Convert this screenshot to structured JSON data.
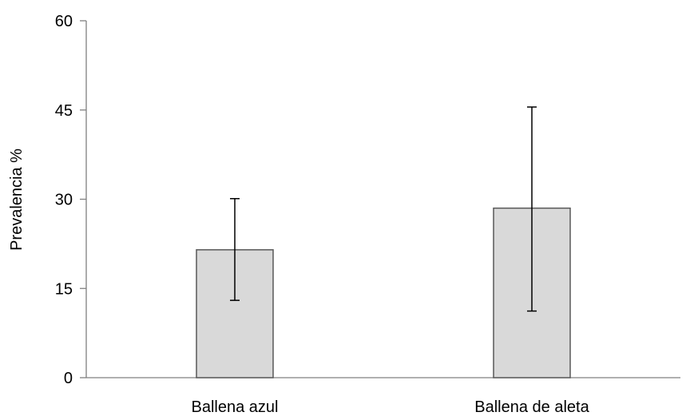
{
  "chart_data": {
    "type": "bar",
    "title": "",
    "xlabel": "",
    "ylabel": "Prevalencia %",
    "categories": [
      "Ballena azul",
      "Ballena de aleta"
    ],
    "values": [
      21.5,
      28.5
    ],
    "error_bars": {
      "lower": [
        13.0,
        11.2
      ],
      "upper": [
        30.1,
        45.5
      ]
    },
    "ylim": [
      0,
      60
    ],
    "yticks": [
      0,
      15,
      30,
      45,
      60
    ],
    "grid": false,
    "legend": "none",
    "colors": {
      "bar_fill": "#d9d9d9",
      "bar_stroke": "#595959",
      "axis": "#808080",
      "error_bar": "#000000"
    }
  }
}
